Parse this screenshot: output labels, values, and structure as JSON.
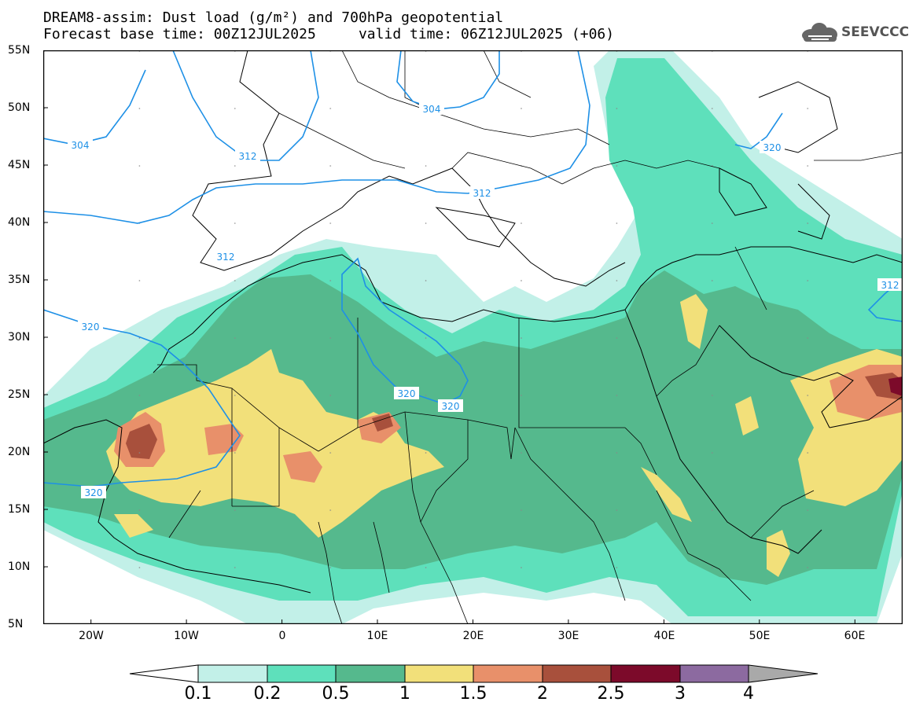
{
  "title": {
    "line1": "DREAM8-assim: Dust load (g/m²) and 700hPa geopotential",
    "line2": "Forecast base time: 00Z12JUL2025     valid time: 06Z12JUL2025 (+06)"
  },
  "logo": {
    "text": "SEEVCCC"
  },
  "map": {
    "lon_range": [
      -25,
      65
    ],
    "lat_range": [
      5,
      55
    ],
    "lat_labels": [
      "55N",
      "50N",
      "45N",
      "40N",
      "35N",
      "30N",
      "25N",
      "20N",
      "15N",
      "10N",
      "5N"
    ],
    "lon_labels": [
      "20W",
      "10W",
      "0",
      "10E",
      "20E",
      "30E",
      "40E",
      "50E",
      "60E"
    ],
    "contour_labels": [
      "304",
      "304",
      "312",
      "312",
      "312",
      "320",
      "320",
      "320",
      "320",
      "320",
      "312"
    ],
    "colors": {
      "frame": "#000000",
      "contour": "#1e90e6",
      "border": "#000000"
    }
  },
  "colorbar": {
    "levels": [
      "0.1",
      "0.2",
      "0.5",
      "1",
      "1.5",
      "2",
      "2.5",
      "3",
      "4"
    ],
    "colors": [
      "#c2f0e8",
      "#5ee0bb",
      "#55b98d",
      "#f2e07a",
      "#e8906a",
      "#a8503c",
      "#7c0a2a",
      "#8c6aa0",
      "#a9a9a9"
    ]
  }
}
